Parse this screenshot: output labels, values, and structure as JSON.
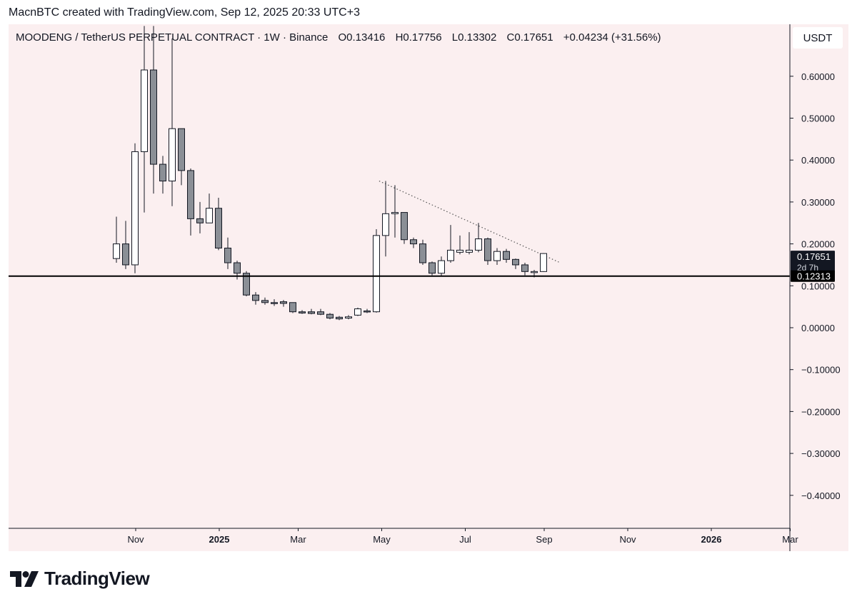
{
  "header": {
    "credit": "MacnBTC created with TradingView.com, Sep 12, 2025 20:33 UTC+3"
  },
  "symbol": {
    "name": "MOODENG / TetherUS PERPETUAL CONTRACT · 1W · Binance",
    "open": "O0.13416",
    "high": "H0.17756",
    "low": "L0.13302",
    "close": "C0.17651",
    "change": "+0.04234 (+31.56%)"
  },
  "currency": "USDT",
  "price_badge": {
    "price": "0.17651",
    "countdown": "2d 7h",
    "level": "0.12313"
  },
  "brand": {
    "name": "TradingView"
  },
  "colors": {
    "background": "#fbeff0",
    "up_fill": "#ffffff",
    "down_fill": "#8b8f96",
    "candle_border": "#131722",
    "horizontal_line": "#000000",
    "trendline": "#555555",
    "badge_dark": "#131722"
  },
  "chart_data": {
    "type": "candlestick",
    "interval": "1W",
    "y_ticks": [
      "0.60000",
      "0.50000",
      "0.40000",
      "0.30000",
      "0.20000",
      "0.10000",
      "0.00000",
      "−0.10000",
      "−0.20000",
      "−0.30000",
      "−0.40000"
    ],
    "x_ticks": [
      {
        "label": "Nov",
        "week": 0,
        "bold": false
      },
      {
        "label": "2025",
        "week": 9,
        "bold": true
      },
      {
        "label": "Mar",
        "week": 17.5,
        "bold": false
      },
      {
        "label": "May",
        "week": 26.5,
        "bold": false
      },
      {
        "label": "Jul",
        "week": 35.5,
        "bold": false
      },
      {
        "label": "Sep",
        "week": 44,
        "bold": false
      },
      {
        "label": "Nov",
        "week": 53,
        "bold": false
      },
      {
        "label": "2026",
        "week": 62,
        "bold": true
      },
      {
        "label": "Mar",
        "week": 70.5,
        "bold": false
      }
    ],
    "ylim": [
      -0.47,
      0.7
    ],
    "horizontal_level": 0.12313,
    "trendline": {
      "from": {
        "week": 28.3,
        "price": 0.35
      },
      "to": {
        "week": 47.8,
        "price": 0.155
      }
    },
    "candles": [
      {
        "o": 0.165,
        "h": 0.265,
        "l": 0.155,
        "c": 0.2
      },
      {
        "o": 0.2,
        "h": 0.255,
        "l": 0.14,
        "c": 0.15
      },
      {
        "o": 0.15,
        "h": 0.44,
        "l": 0.13,
        "c": 0.42
      },
      {
        "o": 0.42,
        "h": 0.72,
        "l": 0.275,
        "c": 0.615
      },
      {
        "o": 0.615,
        "h": 0.72,
        "l": 0.32,
        "c": 0.39
      },
      {
        "o": 0.39,
        "h": 0.41,
        "l": 0.32,
        "c": 0.35
      },
      {
        "o": 0.35,
        "h": 0.69,
        "l": 0.29,
        "c": 0.475
      },
      {
        "o": 0.475,
        "h": 0.475,
        "l": 0.34,
        "c": 0.375
      },
      {
        "o": 0.375,
        "h": 0.38,
        "l": 0.22,
        "c": 0.26
      },
      {
        "o": 0.26,
        "h": 0.3,
        "l": 0.225,
        "c": 0.25
      },
      {
        "o": 0.25,
        "h": 0.32,
        "l": 0.25,
        "c": 0.285
      },
      {
        "o": 0.285,
        "h": 0.31,
        "l": 0.185,
        "c": 0.19
      },
      {
        "o": 0.19,
        "h": 0.215,
        "l": 0.14,
        "c": 0.155
      },
      {
        "o": 0.155,
        "h": 0.16,
        "l": 0.115,
        "c": 0.13
      },
      {
        "o": 0.13,
        "h": 0.135,
        "l": 0.075,
        "c": 0.078
      },
      {
        "o": 0.078,
        "h": 0.085,
        "l": 0.055,
        "c": 0.065
      },
      {
        "o": 0.065,
        "h": 0.072,
        "l": 0.055,
        "c": 0.06
      },
      {
        "o": 0.06,
        "h": 0.068,
        "l": 0.052,
        "c": 0.058
      },
      {
        "o": 0.062,
        "h": 0.066,
        "l": 0.05,
        "c": 0.058
      },
      {
        "o": 0.06,
        "h": 0.06,
        "l": 0.035,
        "c": 0.038
      },
      {
        "o": 0.038,
        "h": 0.042,
        "l": 0.033,
        "c": 0.035
      },
      {
        "o": 0.038,
        "h": 0.045,
        "l": 0.032,
        "c": 0.034
      },
      {
        "o": 0.038,
        "h": 0.045,
        "l": 0.03,
        "c": 0.032
      },
      {
        "o": 0.032,
        "h": 0.035,
        "l": 0.02,
        "c": 0.023
      },
      {
        "o": 0.025,
        "h": 0.028,
        "l": 0.018,
        "c": 0.021
      },
      {
        "o": 0.023,
        "h": 0.03,
        "l": 0.02,
        "c": 0.026
      },
      {
        "o": 0.03,
        "h": 0.048,
        "l": 0.028,
        "c": 0.045
      },
      {
        "o": 0.04,
        "h": 0.045,
        "l": 0.035,
        "c": 0.038
      },
      {
        "o": 0.038,
        "h": 0.235,
        "l": 0.036,
        "c": 0.22
      },
      {
        "o": 0.22,
        "h": 0.35,
        "l": 0.17,
        "c": 0.272
      },
      {
        "o": 0.272,
        "h": 0.34,
        "l": 0.215,
        "c": 0.275
      },
      {
        "o": 0.275,
        "h": 0.275,
        "l": 0.2,
        "c": 0.21
      },
      {
        "o": 0.21,
        "h": 0.215,
        "l": 0.19,
        "c": 0.2
      },
      {
        "o": 0.2,
        "h": 0.21,
        "l": 0.15,
        "c": 0.155
      },
      {
        "o": 0.155,
        "h": 0.158,
        "l": 0.125,
        "c": 0.13
      },
      {
        "o": 0.13,
        "h": 0.17,
        "l": 0.123,
        "c": 0.16
      },
      {
        "o": 0.16,
        "h": 0.245,
        "l": 0.155,
        "c": 0.185
      },
      {
        "o": 0.18,
        "h": 0.22,
        "l": 0.175,
        "c": 0.185
      },
      {
        "o": 0.18,
        "h": 0.228,
        "l": 0.175,
        "c": 0.185
      },
      {
        "o": 0.185,
        "h": 0.25,
        "l": 0.18,
        "c": 0.212
      },
      {
        "o": 0.212,
        "h": 0.215,
        "l": 0.15,
        "c": 0.16
      },
      {
        "o": 0.16,
        "h": 0.19,
        "l": 0.15,
        "c": 0.182
      },
      {
        "o": 0.182,
        "h": 0.188,
        "l": 0.155,
        "c": 0.163
      },
      {
        "o": 0.163,
        "h": 0.165,
        "l": 0.14,
        "c": 0.15
      },
      {
        "o": 0.15,
        "h": 0.155,
        "l": 0.125,
        "c": 0.134
      },
      {
        "o": 0.134,
        "h": 0.138,
        "l": 0.12,
        "c": 0.134
      },
      {
        "o": 0.134,
        "h": 0.178,
        "l": 0.133,
        "c": 0.177
      }
    ]
  }
}
